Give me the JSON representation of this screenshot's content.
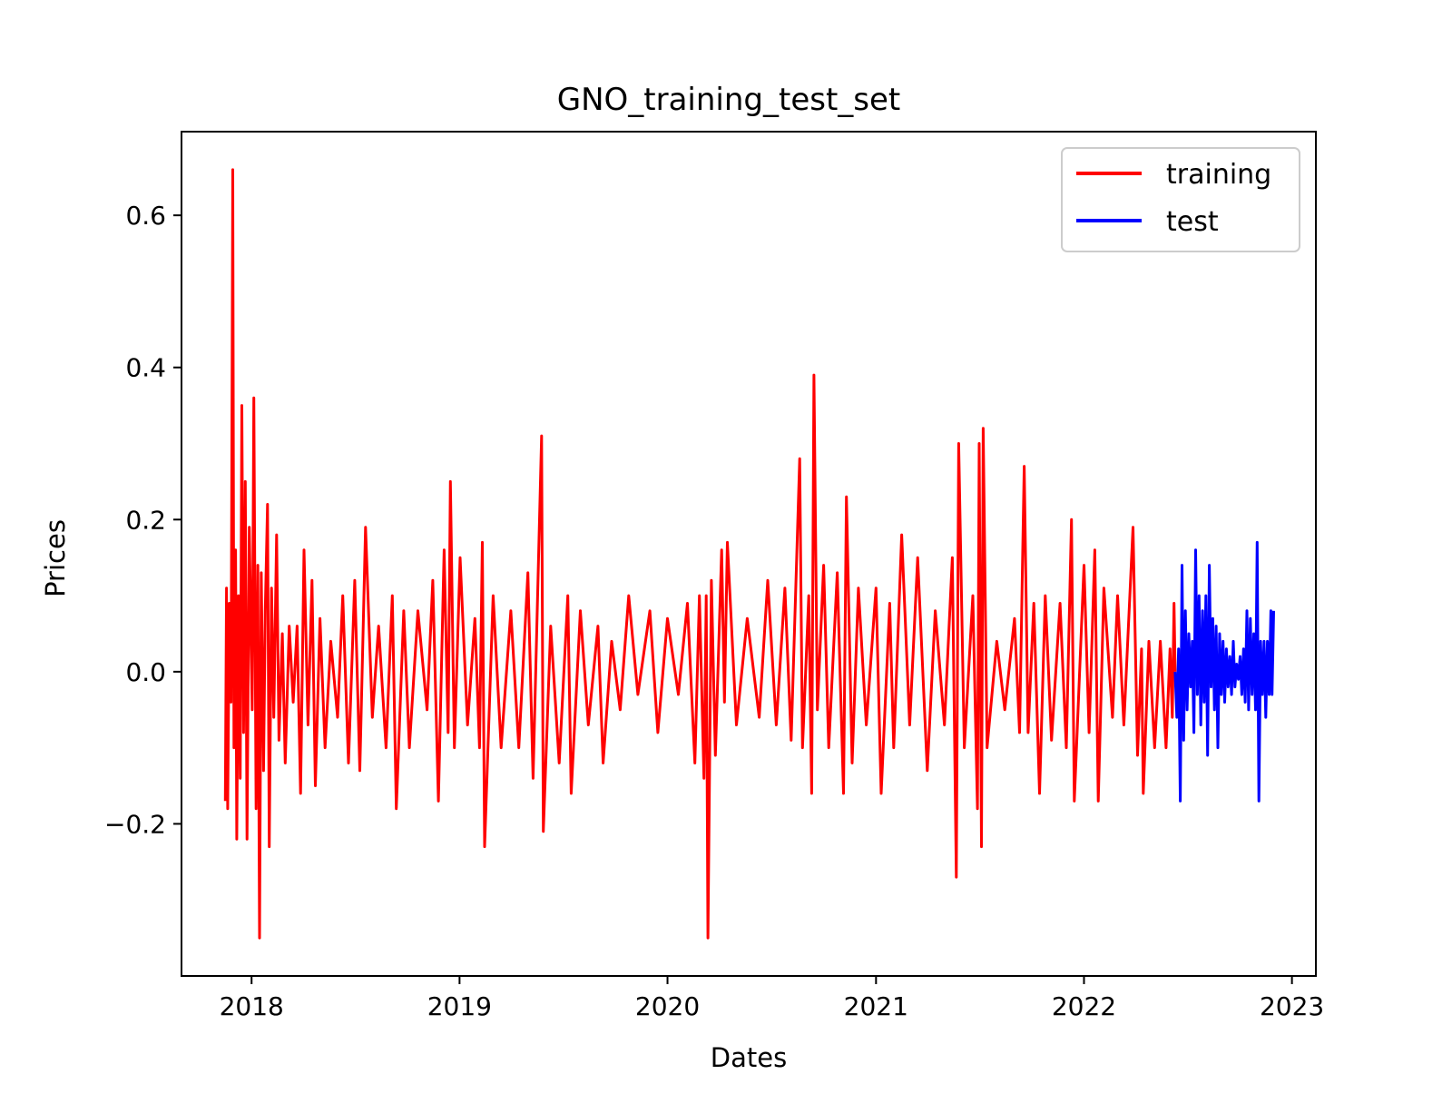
{
  "chart_data": {
    "type": "line",
    "title": "GNO_training_test_set",
    "xlabel": "Dates",
    "ylabel": "Prices",
    "x_ticks": [
      "2018",
      "2019",
      "2020",
      "2021",
      "2022",
      "2023"
    ],
    "y_ticks": [
      "−0.2",
      "0.0",
      "0.2",
      "0.4",
      "0.6"
    ],
    "xlim": [
      "2017-08-31",
      "2023-02-12"
    ],
    "ylim": [
      -0.4,
      0.71
    ],
    "grid": false,
    "legend_position": "top-right",
    "series": [
      {
        "name": "training",
        "color": "#ff0000",
        "x_range": [
          "2017-11-16",
          "2022-06-10"
        ],
        "points": [
          [
            "2017-11-16",
            -0.17
          ],
          [
            "2017-11-18",
            0.11
          ],
          [
            "2017-11-20",
            -0.18
          ],
          [
            "2017-11-23",
            0.09
          ],
          [
            "2017-11-26",
            -0.04
          ],
          [
            "2017-11-29",
            0.66
          ],
          [
            "2017-12-01",
            -0.1
          ],
          [
            "2017-12-04",
            0.16
          ],
          [
            "2017-12-06",
            -0.22
          ],
          [
            "2017-12-09",
            0.1
          ],
          [
            "2017-12-12",
            -0.14
          ],
          [
            "2017-12-15",
            0.35
          ],
          [
            "2017-12-18",
            -0.08
          ],
          [
            "2017-12-21",
            0.25
          ],
          [
            "2017-12-24",
            -0.22
          ],
          [
            "2017-12-28",
            0.19
          ],
          [
            "2018-01-02",
            -0.05
          ],
          [
            "2018-01-05",
            0.36
          ],
          [
            "2018-01-09",
            -0.18
          ],
          [
            "2018-01-12",
            0.14
          ],
          [
            "2018-01-15",
            -0.35
          ],
          [
            "2018-01-18",
            0.13
          ],
          [
            "2018-01-22",
            -0.13
          ],
          [
            "2018-01-25",
            0.08
          ],
          [
            "2018-01-29",
            0.22
          ],
          [
            "2018-02-01",
            -0.23
          ],
          [
            "2018-02-05",
            0.11
          ],
          [
            "2018-02-09",
            -0.06
          ],
          [
            "2018-02-14",
            0.18
          ],
          [
            "2018-02-18",
            -0.09
          ],
          [
            "2018-02-24",
            0.05
          ],
          [
            "2018-03-01",
            -0.12
          ],
          [
            "2018-03-08",
            0.06
          ],
          [
            "2018-03-15",
            -0.04
          ],
          [
            "2018-03-22",
            0.06
          ],
          [
            "2018-03-28",
            -0.16
          ],
          [
            "2018-04-03",
            0.16
          ],
          [
            "2018-04-10",
            -0.07
          ],
          [
            "2018-04-17",
            0.12
          ],
          [
            "2018-04-23",
            -0.15
          ],
          [
            "2018-05-01",
            0.07
          ],
          [
            "2018-05-10",
            -0.1
          ],
          [
            "2018-05-20",
            0.04
          ],
          [
            "2018-06-01",
            -0.06
          ],
          [
            "2018-06-10",
            0.1
          ],
          [
            "2018-06-20",
            -0.12
          ],
          [
            "2018-07-01",
            0.12
          ],
          [
            "2018-07-10",
            -0.13
          ],
          [
            "2018-07-20",
            0.19
          ],
          [
            "2018-08-01",
            -0.06
          ],
          [
            "2018-08-12",
            0.06
          ],
          [
            "2018-08-25",
            -0.1
          ],
          [
            "2018-09-05",
            0.1
          ],
          [
            "2018-09-12",
            -0.18
          ],
          [
            "2018-09-25",
            0.08
          ],
          [
            "2018-10-05",
            -0.1
          ],
          [
            "2018-10-20",
            0.08
          ],
          [
            "2018-11-05",
            -0.05
          ],
          [
            "2018-11-15",
            0.12
          ],
          [
            "2018-11-25",
            -0.17
          ],
          [
            "2018-12-05",
            0.16
          ],
          [
            "2018-12-12",
            -0.08
          ],
          [
            "2018-12-16",
            0.25
          ],
          [
            "2018-12-23",
            -0.1
          ],
          [
            "2019-01-02",
            0.15
          ],
          [
            "2019-01-15",
            -0.07
          ],
          [
            "2019-01-28",
            0.07
          ],
          [
            "2019-02-05",
            -0.1
          ],
          [
            "2019-02-10",
            0.17
          ],
          [
            "2019-02-14",
            -0.23
          ],
          [
            "2019-03-01",
            0.1
          ],
          [
            "2019-03-15",
            -0.1
          ],
          [
            "2019-04-01",
            0.08
          ],
          [
            "2019-04-15",
            -0.1
          ],
          [
            "2019-05-01",
            0.13
          ],
          [
            "2019-05-10",
            -0.14
          ],
          [
            "2019-05-25",
            0.31
          ],
          [
            "2019-05-28",
            -0.21
          ],
          [
            "2019-06-10",
            0.06
          ],
          [
            "2019-06-25",
            -0.12
          ],
          [
            "2019-07-10",
            0.1
          ],
          [
            "2019-07-16",
            -0.16
          ],
          [
            "2019-08-01",
            0.08
          ],
          [
            "2019-08-15",
            -0.07
          ],
          [
            "2019-09-01",
            0.06
          ],
          [
            "2019-09-10",
            -0.12
          ],
          [
            "2019-09-25",
            0.04
          ],
          [
            "2019-10-10",
            -0.05
          ],
          [
            "2019-10-25",
            0.1
          ],
          [
            "2019-11-10",
            -0.03
          ],
          [
            "2019-12-01",
            0.08
          ],
          [
            "2019-12-15",
            -0.08
          ],
          [
            "2020-01-01",
            0.07
          ],
          [
            "2020-01-20",
            -0.03
          ],
          [
            "2020-02-05",
            0.09
          ],
          [
            "2020-02-18",
            -0.12
          ],
          [
            "2020-02-26",
            0.1
          ],
          [
            "2020-03-05",
            -0.14
          ],
          [
            "2020-03-09",
            0.1
          ],
          [
            "2020-03-12",
            -0.35
          ],
          [
            "2020-03-18",
            0.12
          ],
          [
            "2020-03-25",
            -0.11
          ],
          [
            "2020-04-05",
            0.16
          ],
          [
            "2020-04-10",
            -0.04
          ],
          [
            "2020-04-15",
            0.17
          ],
          [
            "2020-05-01",
            -0.07
          ],
          [
            "2020-05-20",
            0.07
          ],
          [
            "2020-06-10",
            -0.06
          ],
          [
            "2020-06-25",
            0.12
          ],
          [
            "2020-07-10",
            -0.07
          ],
          [
            "2020-07-25",
            0.11
          ],
          [
            "2020-08-05",
            -0.09
          ],
          [
            "2020-08-20",
            0.28
          ],
          [
            "2020-08-25",
            -0.1
          ],
          [
            "2020-09-05",
            0.1
          ],
          [
            "2020-09-10",
            -0.16
          ],
          [
            "2020-09-14",
            0.39
          ],
          [
            "2020-09-20",
            -0.05
          ],
          [
            "2020-10-01",
            0.14
          ],
          [
            "2020-10-10",
            -0.1
          ],
          [
            "2020-10-25",
            0.13
          ],
          [
            "2020-11-05",
            -0.16
          ],
          [
            "2020-11-10",
            0.23
          ],
          [
            "2020-11-20",
            -0.12
          ],
          [
            "2020-12-01",
            0.11
          ],
          [
            "2020-12-15",
            -0.07
          ],
          [
            "2021-01-01",
            0.11
          ],
          [
            "2021-01-10",
            -0.16
          ],
          [
            "2021-01-25",
            0.09
          ],
          [
            "2021-02-01",
            -0.1
          ],
          [
            "2021-02-15",
            0.18
          ],
          [
            "2021-03-01",
            -0.07
          ],
          [
            "2021-03-15",
            0.15
          ],
          [
            "2021-04-01",
            -0.13
          ],
          [
            "2021-04-15",
            0.08
          ],
          [
            "2021-05-01",
            -0.07
          ],
          [
            "2021-05-15",
            0.15
          ],
          [
            "2021-05-22",
            -0.27
          ],
          [
            "2021-05-26",
            0.3
          ],
          [
            "2021-06-05",
            -0.1
          ],
          [
            "2021-06-20",
            0.1
          ],
          [
            "2021-06-28",
            -0.18
          ],
          [
            "2021-07-01",
            0.3
          ],
          [
            "2021-07-05",
            -0.23
          ],
          [
            "2021-07-08",
            0.32
          ],
          [
            "2021-07-15",
            -0.1
          ],
          [
            "2021-08-01",
            0.04
          ],
          [
            "2021-08-15",
            -0.05
          ],
          [
            "2021-09-01",
            0.07
          ],
          [
            "2021-09-10",
            -0.08
          ],
          [
            "2021-09-18",
            0.27
          ],
          [
            "2021-09-25",
            -0.08
          ],
          [
            "2021-10-05",
            0.09
          ],
          [
            "2021-10-15",
            -0.16
          ],
          [
            "2021-10-25",
            0.1
          ],
          [
            "2021-11-05",
            -0.09
          ],
          [
            "2021-11-20",
            0.09
          ],
          [
            "2021-12-01",
            -0.1
          ],
          [
            "2021-12-10",
            0.2
          ],
          [
            "2021-12-15",
            -0.17
          ],
          [
            "2022-01-01",
            0.14
          ],
          [
            "2022-01-10",
            -0.08
          ],
          [
            "2022-01-20",
            0.16
          ],
          [
            "2022-01-26",
            -0.17
          ],
          [
            "2022-02-05",
            0.11
          ],
          [
            "2022-02-20",
            -0.06
          ],
          [
            "2022-03-01",
            0.1
          ],
          [
            "2022-03-12",
            -0.07
          ],
          [
            "2022-03-28",
            0.19
          ],
          [
            "2022-04-05",
            -0.11
          ],
          [
            "2022-04-12",
            0.03
          ],
          [
            "2022-04-15",
            -0.16
          ],
          [
            "2022-04-25",
            0.04
          ],
          [
            "2022-05-05",
            -0.1
          ],
          [
            "2022-05-15",
            0.04
          ],
          [
            "2022-05-25",
            -0.1
          ],
          [
            "2022-06-01",
            0.03
          ],
          [
            "2022-06-05",
            -0.06
          ],
          [
            "2022-06-08",
            0.09
          ],
          [
            "2022-06-10",
            0.0
          ]
        ]
      },
      {
        "name": "test",
        "color": "#0000ff",
        "x_range": [
          "2022-06-10",
          "2022-11-30"
        ],
        "points": [
          [
            "2022-06-10",
            0.0
          ],
          [
            "2022-06-13",
            -0.06
          ],
          [
            "2022-06-16",
            0.03
          ],
          [
            "2022-06-19",
            -0.17
          ],
          [
            "2022-06-22",
            0.14
          ],
          [
            "2022-06-25",
            -0.09
          ],
          [
            "2022-06-28",
            0.08
          ],
          [
            "2022-07-01",
            -0.05
          ],
          [
            "2022-07-04",
            0.05
          ],
          [
            "2022-07-07",
            -0.02
          ],
          [
            "2022-07-10",
            0.04
          ],
          [
            "2022-07-13",
            -0.08
          ],
          [
            "2022-07-16",
            0.16
          ],
          [
            "2022-07-19",
            -0.03
          ],
          [
            "2022-07-22",
            0.1
          ],
          [
            "2022-07-25",
            -0.07
          ],
          [
            "2022-07-28",
            0.08
          ],
          [
            "2022-07-31",
            -0.04
          ],
          [
            "2022-08-03",
            0.1
          ],
          [
            "2022-08-06",
            -0.11
          ],
          [
            "2022-08-09",
            0.14
          ],
          [
            "2022-08-12",
            -0.02
          ],
          [
            "2022-08-15",
            0.07
          ],
          [
            "2022-08-18",
            -0.05
          ],
          [
            "2022-08-21",
            0.06
          ],
          [
            "2022-08-24",
            -0.1
          ],
          [
            "2022-08-27",
            0.05
          ],
          [
            "2022-08-30",
            -0.03
          ],
          [
            "2022-09-02",
            0.04
          ],
          [
            "2022-09-05",
            -0.04
          ],
          [
            "2022-09-08",
            0.03
          ],
          [
            "2022-09-11",
            -0.02
          ],
          [
            "2022-09-14",
            0.02
          ],
          [
            "2022-09-17",
            -0.03
          ],
          [
            "2022-09-20",
            0.04
          ],
          [
            "2022-09-23",
            -0.02
          ],
          [
            "2022-09-26",
            0.01
          ],
          [
            "2022-09-29",
            -0.01
          ],
          [
            "2022-10-02",
            0.02
          ],
          [
            "2022-10-05",
            -0.03
          ],
          [
            "2022-10-08",
            0.03
          ],
          [
            "2022-10-11",
            -0.04
          ],
          [
            "2022-10-14",
            0.08
          ],
          [
            "2022-10-17",
            -0.05
          ],
          [
            "2022-10-20",
            0.07
          ],
          [
            "2022-10-23",
            -0.03
          ],
          [
            "2022-10-26",
            0.05
          ],
          [
            "2022-10-29",
            -0.05
          ],
          [
            "2022-11-01",
            0.17
          ],
          [
            "2022-11-04",
            -0.17
          ],
          [
            "2022-11-07",
            0.04
          ],
          [
            "2022-11-10",
            -0.03
          ],
          [
            "2022-11-13",
            0.04
          ],
          [
            "2022-11-16",
            -0.06
          ],
          [
            "2022-11-19",
            0.04
          ],
          [
            "2022-11-22",
            -0.03
          ],
          [
            "2022-11-25",
            0.08
          ],
          [
            "2022-11-27",
            -0.03
          ],
          [
            "2022-11-30",
            0.08
          ]
        ]
      }
    ]
  }
}
